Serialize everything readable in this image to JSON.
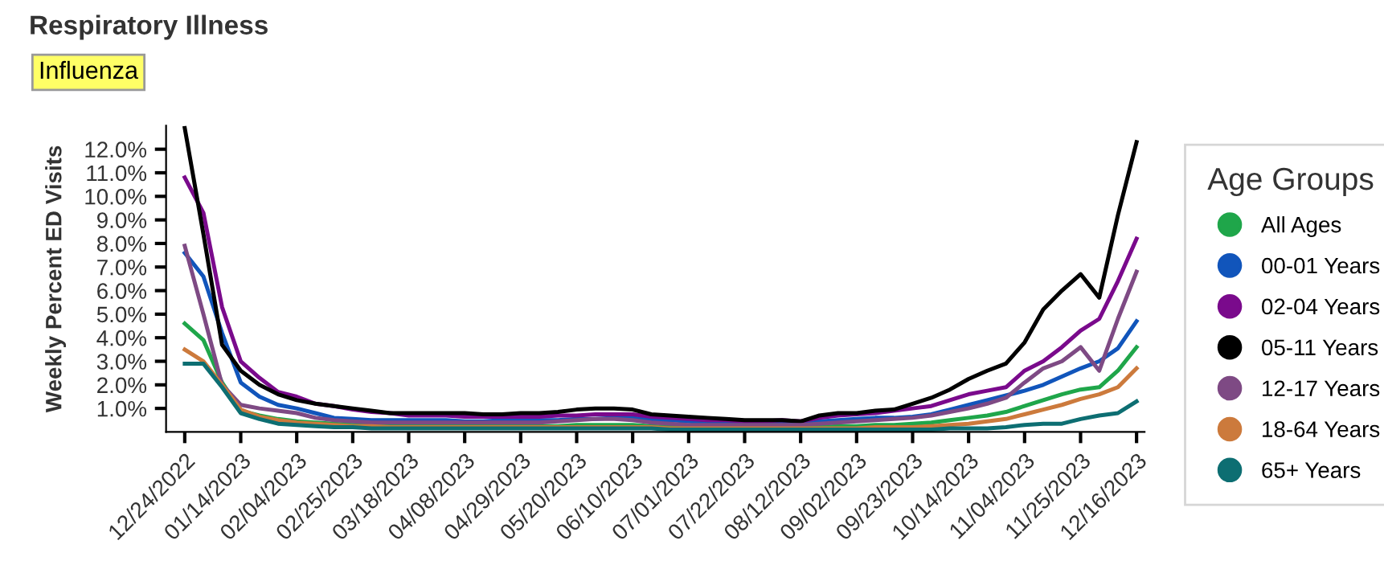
{
  "chart_data": {
    "type": "line",
    "title": "Respiratory Illness",
    "annotations": [
      "Influenza"
    ],
    "ylabel": "Weekly Percent ED Visits",
    "legend_title": "Age Groups",
    "legend": "right",
    "grid": false,
    "marker": "none",
    "line_style": "solid",
    "x": [
      "2022-12-24",
      "2022-12-31",
      "2023-01-07",
      "2023-01-14",
      "2023-01-21",
      "2023-01-28",
      "2023-02-04",
      "2023-02-11",
      "2023-02-18",
      "2023-02-25",
      "2023-03-04",
      "2023-03-11",
      "2023-03-18",
      "2023-03-25",
      "2023-04-01",
      "2023-04-08",
      "2023-04-15",
      "2023-04-22",
      "2023-04-29",
      "2023-05-06",
      "2023-05-13",
      "2023-05-20",
      "2023-05-27",
      "2023-06-03",
      "2023-06-10",
      "2023-06-17",
      "2023-06-24",
      "2023-07-01",
      "2023-07-08",
      "2023-07-15",
      "2023-07-22",
      "2023-07-29",
      "2023-08-05",
      "2023-08-12",
      "2023-08-19",
      "2023-08-26",
      "2023-09-02",
      "2023-09-09",
      "2023-09-16",
      "2023-09-23",
      "2023-09-30",
      "2023-10-07",
      "2023-10-14",
      "2023-10-21",
      "2023-10-28",
      "2023-11-04",
      "2023-11-11",
      "2023-11-18",
      "2023-11-25",
      "2023-12-02",
      "2023-12-09",
      "2023-12-16"
    ],
    "xlim": [
      "2022-12-17",
      "2023-12-19"
    ],
    "xticks": [
      {
        "value": "2022-12-24",
        "label": "12/24/2022"
      },
      {
        "value": "2023-01-14",
        "label": "01/14/2023"
      },
      {
        "value": "2023-02-04",
        "label": "02/04/2023"
      },
      {
        "value": "2023-02-25",
        "label": "02/25/2023"
      },
      {
        "value": "2023-03-18",
        "label": "03/18/2023"
      },
      {
        "value": "2023-04-08",
        "label": "04/08/2023"
      },
      {
        "value": "2023-04-29",
        "label": "04/29/2023"
      },
      {
        "value": "2023-05-20",
        "label": "05/20/2023"
      },
      {
        "value": "2023-06-10",
        "label": "06/10/2023"
      },
      {
        "value": "2023-07-01",
        "label": "07/01/2023"
      },
      {
        "value": "2023-07-22",
        "label": "07/22/2023"
      },
      {
        "value": "2023-08-12",
        "label": "08/12/2023"
      },
      {
        "value": "2023-09-02",
        "label": "09/02/2023"
      },
      {
        "value": "2023-09-23",
        "label": "09/23/2023"
      },
      {
        "value": "2023-10-14",
        "label": "10/14/2023"
      },
      {
        "value": "2023-11-04",
        "label": "11/04/2023"
      },
      {
        "value": "2023-11-25",
        "label": "11/25/2023"
      },
      {
        "value": "2023-12-16",
        "label": "12/16/2023"
      }
    ],
    "ylim": [
      0,
      13
    ],
    "yticks": [
      {
        "value": 1,
        "label": "1.0%"
      },
      {
        "value": 2,
        "label": "2.0%"
      },
      {
        "value": 3,
        "label": "3.0%"
      },
      {
        "value": 4,
        "label": "4.0%"
      },
      {
        "value": 5,
        "label": "5.0%"
      },
      {
        "value": 6,
        "label": "6.0%"
      },
      {
        "value": 7,
        "label": "7.0%"
      },
      {
        "value": 8,
        "label": "8.0%"
      },
      {
        "value": 9,
        "label": "9.0%"
      },
      {
        "value": 10,
        "label": "10.0%"
      },
      {
        "value": 11,
        "label": "11.0%"
      },
      {
        "value": 12,
        "label": "12.0%"
      }
    ],
    "series": [
      {
        "name": "All Ages",
        "color": "#1fa64a",
        "values": [
          4.6,
          3.9,
          2.1,
          0.9,
          0.7,
          0.55,
          0.45,
          0.4,
          0.35,
          0.3,
          0.3,
          0.3,
          0.25,
          0.25,
          0.25,
          0.25,
          0.25,
          0.25,
          0.25,
          0.25,
          0.25,
          0.3,
          0.3,
          0.3,
          0.3,
          0.25,
          0.2,
          0.2,
          0.2,
          0.2,
          0.2,
          0.2,
          0.2,
          0.2,
          0.2,
          0.25,
          0.25,
          0.3,
          0.3,
          0.35,
          0.4,
          0.5,
          0.6,
          0.7,
          0.85,
          1.1,
          1.35,
          1.6,
          1.8,
          1.9,
          2.6,
          3.6
        ]
      },
      {
        "name": "00-01 Years",
        "color": "#1155bb",
        "values": [
          7.6,
          6.6,
          4.2,
          2.1,
          1.5,
          1.15,
          1.0,
          0.8,
          0.6,
          0.55,
          0.5,
          0.5,
          0.5,
          0.5,
          0.5,
          0.45,
          0.45,
          0.5,
          0.5,
          0.5,
          0.5,
          0.55,
          0.55,
          0.6,
          0.6,
          0.5,
          0.5,
          0.45,
          0.4,
          0.4,
          0.35,
          0.35,
          0.4,
          0.4,
          0.45,
          0.5,
          0.55,
          0.6,
          0.6,
          0.65,
          0.75,
          0.95,
          1.15,
          1.35,
          1.55,
          1.75,
          2.0,
          2.35,
          2.7,
          3.0,
          3.55,
          4.7
        ]
      },
      {
        "name": "02-04 Years",
        "color": "#7a0a8c",
        "values": [
          10.8,
          9.3,
          5.3,
          3.0,
          2.3,
          1.7,
          1.5,
          1.2,
          1.1,
          0.95,
          0.85,
          0.8,
          0.7,
          0.7,
          0.7,
          0.65,
          0.65,
          0.65,
          0.65,
          0.65,
          0.7,
          0.7,
          0.75,
          0.75,
          0.75,
          0.65,
          0.6,
          0.55,
          0.5,
          0.5,
          0.45,
          0.45,
          0.5,
          0.45,
          0.6,
          0.7,
          0.75,
          0.8,
          0.9,
          1.0,
          1.1,
          1.35,
          1.6,
          1.75,
          1.9,
          2.6,
          3.0,
          3.6,
          4.3,
          4.8,
          6.4,
          8.2
        ]
      },
      {
        "name": "05-11 Years",
        "color": "#000000",
        "values": [
          12.9,
          8.4,
          3.7,
          2.6,
          2.0,
          1.6,
          1.35,
          1.2,
          1.1,
          1.0,
          0.9,
          0.8,
          0.8,
          0.8,
          0.8,
          0.8,
          0.75,
          0.75,
          0.8,
          0.8,
          0.85,
          0.95,
          1.0,
          1.0,
          0.95,
          0.75,
          0.7,
          0.65,
          0.6,
          0.55,
          0.5,
          0.5,
          0.5,
          0.45,
          0.7,
          0.8,
          0.8,
          0.9,
          0.95,
          1.2,
          1.45,
          1.8,
          2.25,
          2.6,
          2.9,
          3.8,
          5.2,
          6.0,
          6.7,
          5.7,
          9.2,
          12.3
        ]
      },
      {
        "name": "12-17 Years",
        "color": "#7e4a84",
        "values": [
          7.9,
          5.0,
          2.0,
          1.15,
          1.0,
          0.9,
          0.8,
          0.6,
          0.5,
          0.45,
          0.4,
          0.4,
          0.4,
          0.4,
          0.4,
          0.4,
          0.4,
          0.4,
          0.4,
          0.4,
          0.45,
          0.5,
          0.55,
          0.55,
          0.5,
          0.4,
          0.35,
          0.3,
          0.3,
          0.3,
          0.3,
          0.3,
          0.3,
          0.3,
          0.35,
          0.4,
          0.45,
          0.5,
          0.55,
          0.6,
          0.7,
          0.85,
          1.0,
          1.2,
          1.45,
          2.1,
          2.7,
          3.0,
          3.6,
          2.6,
          4.8,
          6.8
        ]
      },
      {
        "name": "18-64 Years",
        "color": "#cc7a3c",
        "values": [
          3.5,
          3.0,
          2.0,
          0.95,
          0.65,
          0.5,
          0.4,
          0.35,
          0.3,
          0.25,
          0.25,
          0.2,
          0.2,
          0.2,
          0.2,
          0.2,
          0.2,
          0.2,
          0.2,
          0.2,
          0.2,
          0.2,
          0.2,
          0.2,
          0.2,
          0.2,
          0.15,
          0.15,
          0.15,
          0.15,
          0.15,
          0.15,
          0.15,
          0.15,
          0.15,
          0.15,
          0.15,
          0.2,
          0.2,
          0.2,
          0.25,
          0.3,
          0.35,
          0.45,
          0.55,
          0.75,
          0.95,
          1.15,
          1.4,
          1.6,
          1.9,
          2.7
        ]
      },
      {
        "name": "65+ Years",
        "color": "#0d6e72",
        "values": [
          2.9,
          2.9,
          1.9,
          0.8,
          0.55,
          0.35,
          0.3,
          0.25,
          0.2,
          0.2,
          0.15,
          0.15,
          0.15,
          0.15,
          0.15,
          0.15,
          0.15,
          0.15,
          0.15,
          0.15,
          0.15,
          0.15,
          0.15,
          0.15,
          0.15,
          0.15,
          0.1,
          0.1,
          0.1,
          0.1,
          0.1,
          0.1,
          0.1,
          0.1,
          0.1,
          0.1,
          0.1,
          0.1,
          0.1,
          0.1,
          0.1,
          0.15,
          0.15,
          0.15,
          0.2,
          0.3,
          0.35,
          0.35,
          0.55,
          0.7,
          0.8,
          1.3
        ]
      }
    ]
  }
}
